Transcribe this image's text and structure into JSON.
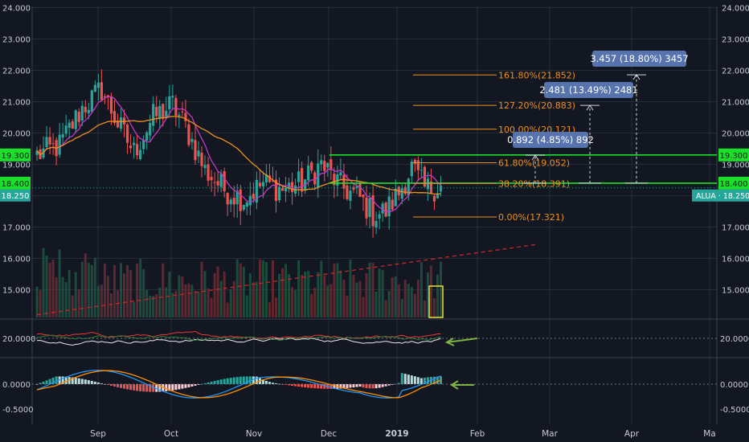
{
  "colors": {
    "background": "#131722",
    "grid": "#262b3a",
    "axis_text": "#c8ccd6",
    "up": "#26a69a",
    "down": "#ef5350",
    "ma_fast": "#c437c6",
    "ma_slow": "#f0901c",
    "fib": "#f0901c",
    "level": "#1be02a",
    "current": "#26a69a",
    "label_box": "#5673ae"
  },
  "chart_data": [
    {
      "type": "line",
      "panel": "price",
      "symbol": "ALUA",
      "last_price_label": "18.250",
      "y_ticks": [
        "24.000",
        "23.000",
        "22.000",
        "21.000",
        "20.000",
        "19.000",
        "18.000",
        "17.000",
        "16.000",
        "15.000"
      ],
      "ylim": [
        14.2,
        24.3
      ],
      "x_ticks": [
        "Sep",
        "Oct",
        "Nov",
        "Dec",
        "2019",
        "Feb",
        "Mar",
        "Apr",
        "Ma"
      ],
      "price_start": 19.3,
      "close_anchors": [
        [
          0,
          19.3
        ],
        [
          7,
          19.6
        ],
        [
          14,
          20.8
        ],
        [
          20,
          21.4
        ],
        [
          25,
          20.3
        ],
        [
          30,
          19.4
        ],
        [
          36,
          20.5
        ],
        [
          42,
          20.9
        ],
        [
          46,
          20.2
        ],
        [
          52,
          18.8
        ],
        [
          58,
          18.2
        ],
        [
          64,
          17.9
        ],
        [
          70,
          18.4
        ],
        [
          76,
          18.2
        ],
        [
          82,
          18.4
        ],
        [
          88,
          19.0
        ],
        [
          94,
          18.3
        ],
        [
          100,
          17.9
        ],
        [
          104,
          17.4
        ],
        [
          108,
          17.5
        ],
        [
          112,
          18.1
        ],
        [
          116,
          18.9
        ],
        [
          120,
          18.2
        ],
        [
          125,
          18.3
        ]
      ],
      "levels": [
        {
          "label": "19.300",
          "value": 19.3
        },
        {
          "label": "18.400",
          "value": 18.4
        }
      ],
      "fibonacci": [
        {
          "label": "161.80%(21.852)",
          "value": 21.852
        },
        {
          "label": "127.20%(20.883)",
          "value": 20.883
        },
        {
          "label": "100.00%(20.121)",
          "value": 20.121
        },
        {
          "label": "61.80%(19.052)",
          "value": 19.052
        },
        {
          "label": "38.20%(18.391)",
          "value": 18.391
        },
        {
          "label": "0.00%(17.321)",
          "value": 17.321
        }
      ],
      "measure_labels": [
        {
          "label": "0.892 (4.85%) 892",
          "value": 0.892
        },
        {
          "label": "2.481 (13.49%) 2481",
          "value": 2.481
        },
        {
          "label": "3.457 (18.80%) 3457",
          "value": 3.457
        }
      ],
      "trendline": {
        "from": [
          0,
          14.2
        ],
        "to": [
          155,
          16.45
        ]
      }
    },
    {
      "type": "line",
      "panel": "indicator-1",
      "y_ticks": [
        "20.0000"
      ],
      "series": [
        {
          "values": []
        },
        {
          "values": []
        },
        {
          "values": []
        }
      ]
    },
    {
      "type": "bar",
      "panel": "macd",
      "y_ticks": [
        "0.0000",
        "-0.5000"
      ],
      "ylim": [
        -0.62,
        0.45
      ]
    }
  ]
}
